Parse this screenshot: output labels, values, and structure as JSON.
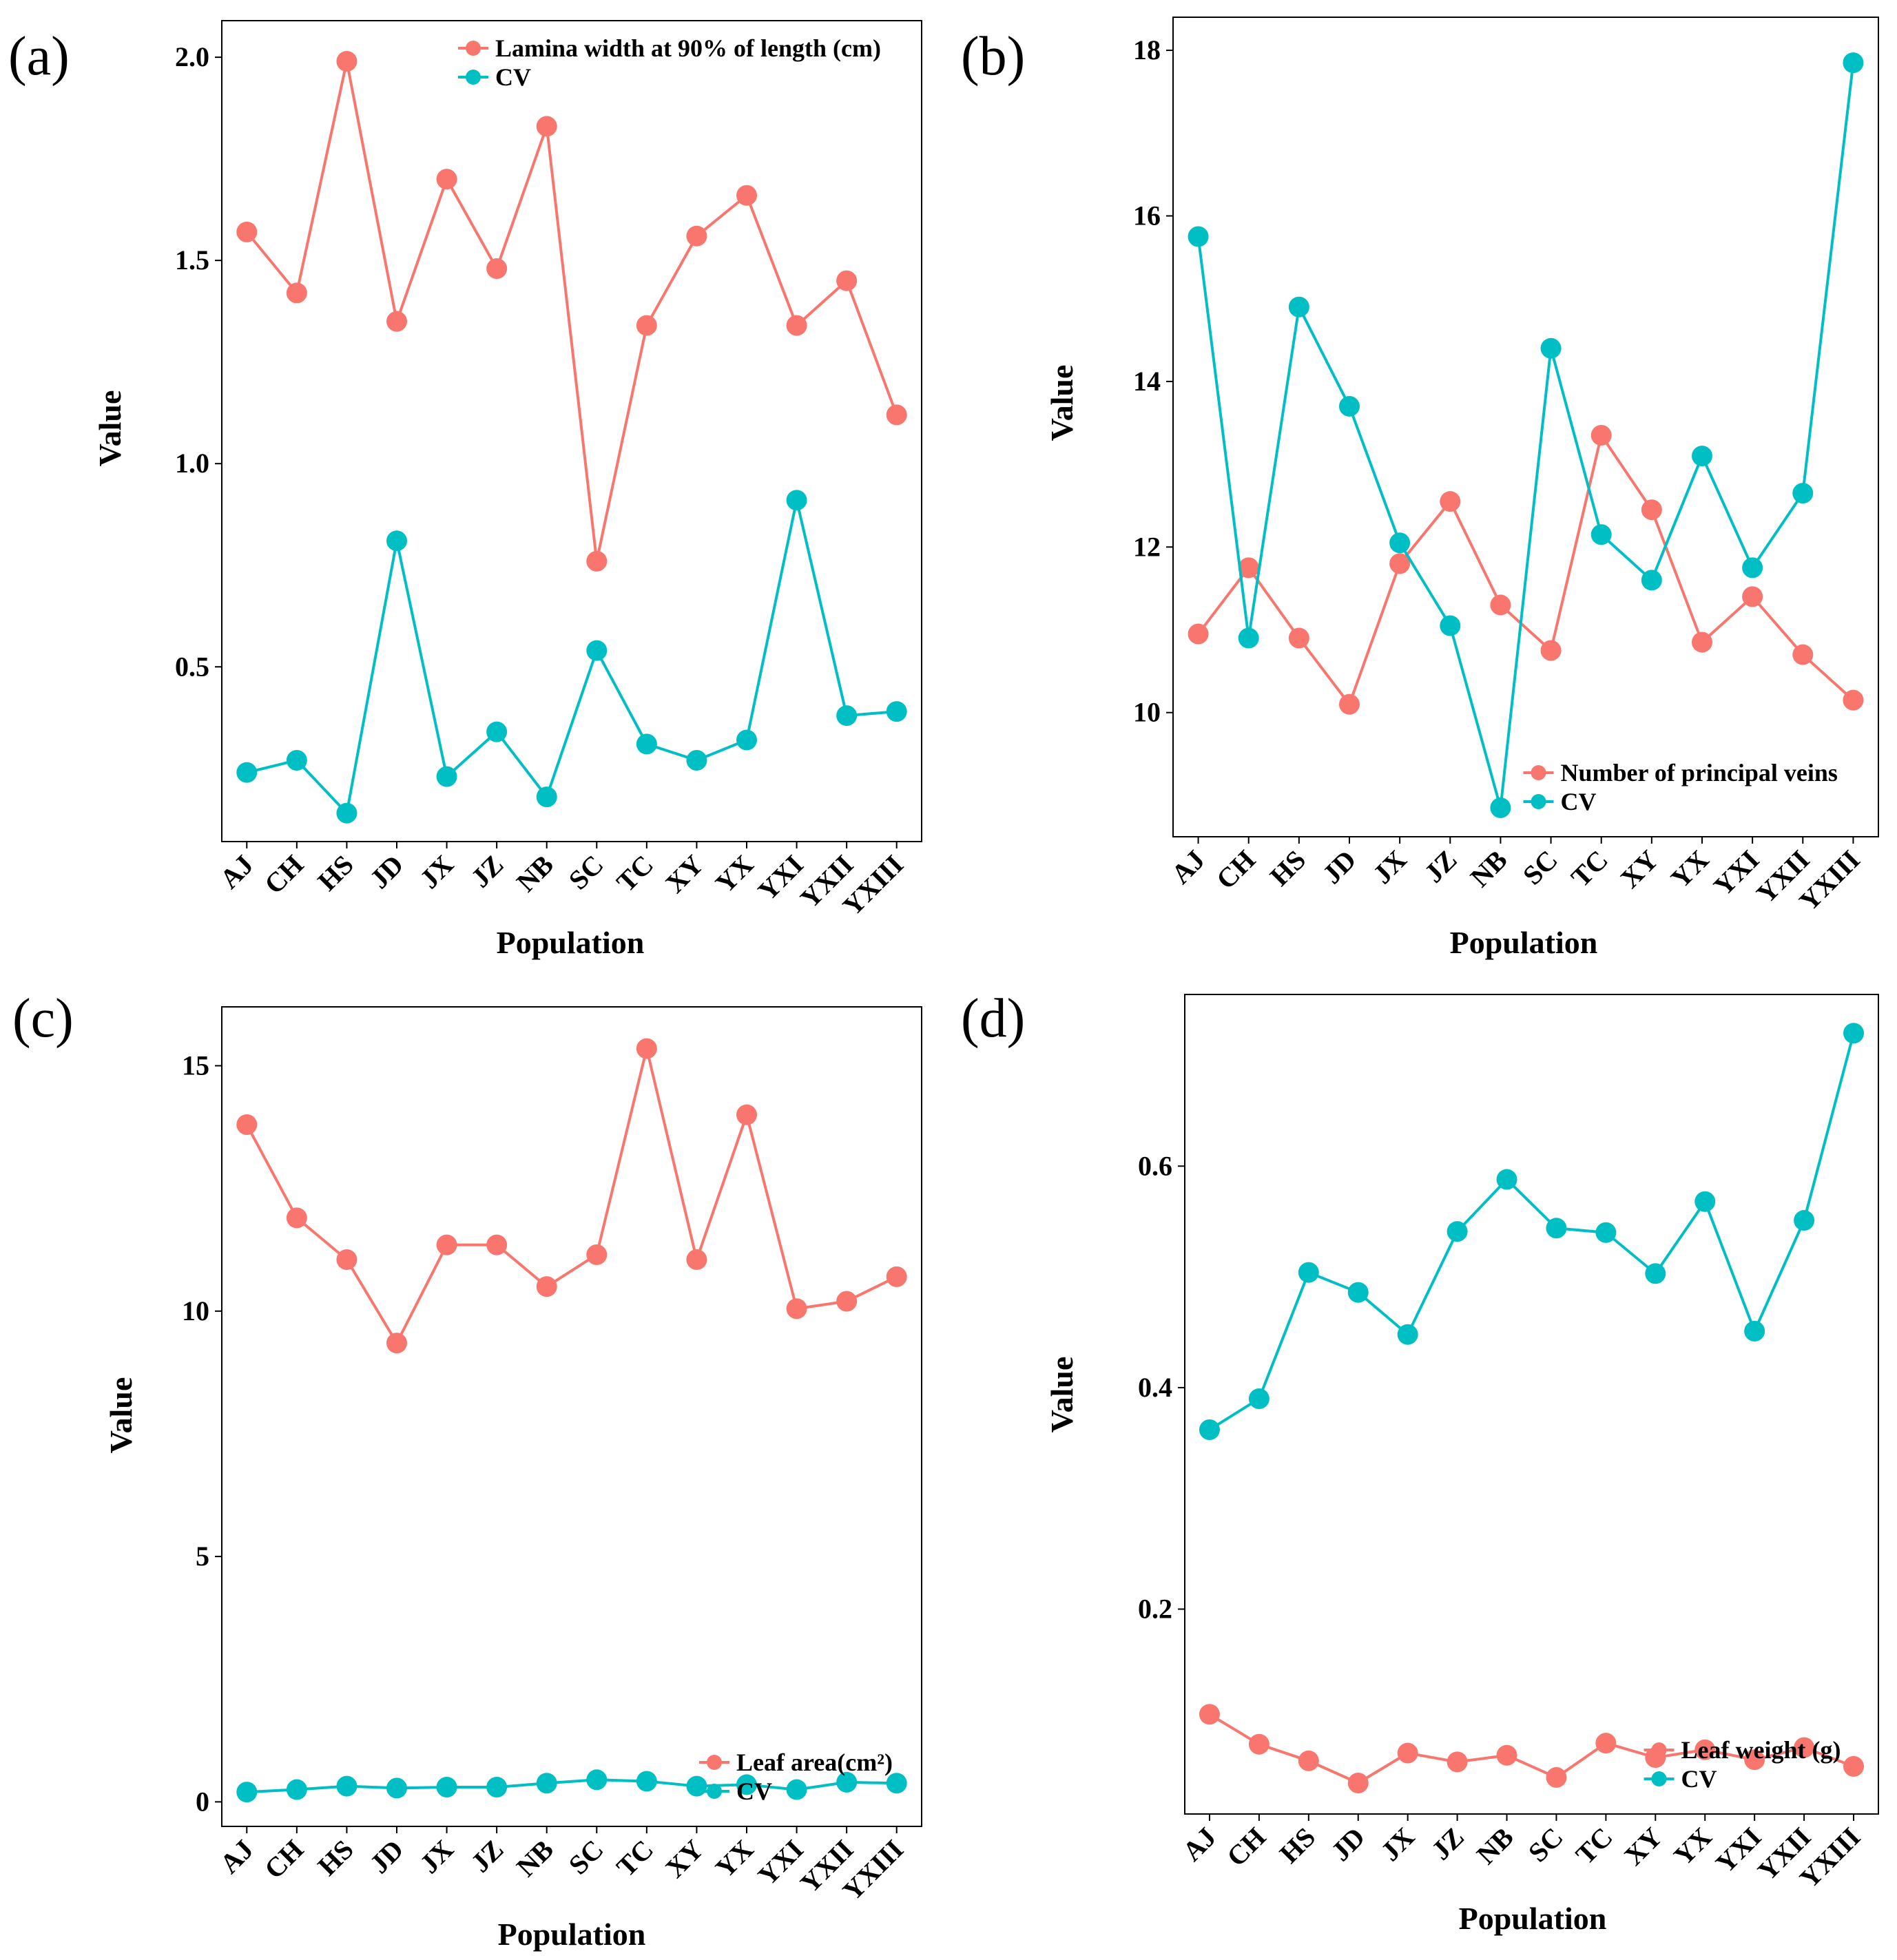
{
  "colors": {
    "series_1": "#F8766D",
    "series_2": "#00BFC4",
    "axis": "#000000"
  },
  "chart_data": [
    {
      "panel": "(a)",
      "type": "line",
      "xlabel": "Population",
      "ylabel": "Value",
      "categories": [
        "AJ",
        "CH",
        "HS",
        "JD",
        "JX",
        "JZ",
        "NB",
        "SC",
        "TC",
        "XY",
        "YX",
        "YXI",
        "YXII",
        "YXIII"
      ],
      "ylim": [
        0.07,
        2.09
      ],
      "yticks": [
        "0.5",
        "1.0",
        "1.5",
        "2.0"
      ],
      "legend_position": "top-right",
      "series": [
        {
          "name": "Lamina width at 90% of length (cm)",
          "color": "#F8766D",
          "values": [
            1.57,
            1.42,
            1.99,
            1.35,
            1.7,
            1.48,
            1.83,
            0.76,
            1.34,
            1.56,
            1.66,
            1.34,
            1.45,
            1.12
          ]
        },
        {
          "name": "CV",
          "color": "#00BFC4",
          "values": [
            0.24,
            0.27,
            0.14,
            0.81,
            0.23,
            0.34,
            0.18,
            0.54,
            0.31,
            0.27,
            0.32,
            0.91,
            0.38,
            0.39
          ]
        }
      ]
    },
    {
      "panel": "(b)",
      "type": "line",
      "xlabel": "Population",
      "ylabel": "Value",
      "categories": [
        "AJ",
        "CH",
        "HS",
        "JD",
        "JX",
        "JZ",
        "NB",
        "SC",
        "TC",
        "XY",
        "YX",
        "YXI",
        "YXII",
        "YXIII"
      ],
      "ylim": [
        8.5,
        18.4
      ],
      "yticks": [
        "10",
        "12",
        "14",
        "16",
        "18"
      ],
      "legend_position": "bottom-right",
      "series": [
        {
          "name": "Number of principal veins",
          "color": "#F8766D",
          "values": [
            10.95,
            11.75,
            10.9,
            10.1,
            11.8,
            12.55,
            11.3,
            10.75,
            13.35,
            12.45,
            10.85,
            11.4,
            10.7,
            10.15
          ]
        },
        {
          "name": "CV",
          "color": "#00BFC4",
          "values": [
            15.75,
            10.9,
            14.9,
            13.7,
            12.05,
            11.05,
            8.85,
            14.4,
            12.15,
            11.6,
            13.1,
            11.75,
            12.65,
            17.85
          ]
        }
      ]
    },
    {
      "panel": "(c)",
      "type": "line",
      "xlabel": "Population",
      "ylabel": "Value",
      "categories": [
        "AJ",
        "CH",
        "HS",
        "JD",
        "JX",
        "JZ",
        "NB",
        "SC",
        "TC",
        "XY",
        "YX",
        "YXI",
        "YXII",
        "YXIII"
      ],
      "ylim": [
        -0.5,
        16.2
      ],
      "yticks": [
        "0",
        "5",
        "10",
        "15"
      ],
      "legend_position": "bottom-right",
      "series": [
        {
          "name": "Leaf area(cm²)",
          "color": "#F8766D",
          "values": [
            13.8,
            11.9,
            11.05,
            9.35,
            11.35,
            11.35,
            10.5,
            11.15,
            15.35,
            11.05,
            14.0,
            10.05,
            10.2,
            10.7
          ]
        },
        {
          "name": "CV",
          "color": "#00BFC4",
          "values": [
            0.2,
            0.25,
            0.32,
            0.28,
            0.3,
            0.3,
            0.38,
            0.45,
            0.42,
            0.32,
            0.35,
            0.25,
            0.4,
            0.38
          ]
        }
      ]
    },
    {
      "panel": "(d)",
      "type": "line",
      "xlabel": "Population",
      "ylabel": "Value",
      "categories": [
        "AJ",
        "CH",
        "HS",
        "JD",
        "JX",
        "JZ",
        "NB",
        "SC",
        "TC",
        "XY",
        "YX",
        "YXI",
        "YXII",
        "YXIII"
      ],
      "ylim": [
        0.015,
        0.755
      ],
      "yticks": [
        "0.2",
        "0.4",
        "0.6"
      ],
      "legend_position": "bottom-right",
      "series": [
        {
          "name": "Leaf weight (g)",
          "color": "#F8766D",
          "values": [
            0.105,
            0.078,
            0.063,
            0.043,
            0.07,
            0.062,
            0.068,
            0.048,
            0.079,
            0.066,
            0.073,
            0.064,
            0.075,
            0.058
          ]
        },
        {
          "name": "CV",
          "color": "#00BFC4",
          "values": [
            0.362,
            0.39,
            0.504,
            0.486,
            0.448,
            0.541,
            0.588,
            0.544,
            0.54,
            0.503,
            0.568,
            0.451,
            0.551,
            0.72
          ]
        }
      ]
    }
  ]
}
